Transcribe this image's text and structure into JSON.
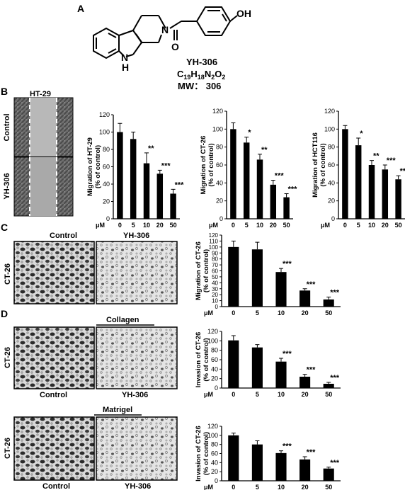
{
  "panel_labels": {
    "a": "A",
    "b": "B",
    "c": "C",
    "d": "D"
  },
  "compound": {
    "name": "YH-306",
    "formula_main": "C",
    "formula_parts": [
      "19",
      "H",
      "18",
      "N",
      "2",
      "O",
      "2"
    ],
    "mw": "MW： 306",
    "oh": "OH",
    "n_ring": "N",
    "n_h": "N",
    "h": "H",
    "o": "O"
  },
  "images": {
    "ht29_title": "HT-29",
    "control": "Control",
    "yh306": "YH-306",
    "ct26": "CT-26",
    "collagen": "Collagen",
    "matrigel": "Matrigel"
  },
  "chart_data": [
    {
      "type": "bar",
      "categories": [
        "0",
        "5",
        "10",
        "20",
        "50"
      ],
      "values": [
        100,
        92,
        64,
        52,
        29
      ],
      "errors": [
        10,
        8,
        12,
        4,
        5
      ],
      "sig": [
        "",
        "",
        "**",
        "***",
        "***"
      ],
      "ylabel": [
        "Migration of HT-29",
        "(% of control)"
      ],
      "xunit": "μM",
      "ylim": [
        0,
        120
      ],
      "yticks": [
        "0",
        "20",
        "40",
        "60",
        "80",
        "100",
        "120"
      ]
    },
    {
      "type": "bar",
      "categories": [
        "0",
        "5",
        "10",
        "20",
        "50"
      ],
      "values": [
        100,
        85,
        66,
        38,
        24
      ],
      "errors": [
        7,
        6,
        6,
        5,
        4
      ],
      "sig": [
        "",
        "*",
        "**",
        "***",
        "***"
      ],
      "ylabel": [
        "Migration of CT-26",
        "(% of control)"
      ],
      "xunit": "μM",
      "ylim": [
        0,
        120
      ],
      "yticks": [
        "0",
        "20",
        "40",
        "60",
        "80",
        "100",
        "120"
      ]
    },
    {
      "type": "bar",
      "categories": [
        "0",
        "5",
        "10",
        "20",
        "50"
      ],
      "values": [
        100,
        82,
        60,
        55,
        44
      ],
      "errors": [
        4,
        8,
        5,
        5,
        4
      ],
      "sig": [
        "",
        "*",
        "**",
        "***",
        "***"
      ],
      "ylabel": [
        "Migration of HCT116",
        "(% of control)"
      ],
      "xunit": "μM",
      "ylim": [
        0,
        120
      ],
      "yticks": [
        "0",
        "20",
        "40",
        "60",
        "80",
        "100",
        "120"
      ]
    },
    {
      "type": "bar",
      "categories": [
        "0",
        "5",
        "10",
        "20",
        "50"
      ],
      "values": [
        100,
        96,
        58,
        27,
        12
      ],
      "errors": [
        10,
        12,
        6,
        3,
        4
      ],
      "sig": [
        "",
        "",
        "***",
        "***",
        "***"
      ],
      "ylabel": [
        "Migration of CT-26",
        "(% of control)"
      ],
      "xunit": "μM",
      "ylim": [
        0,
        120
      ],
      "yticks": [
        "0",
        "10",
        "20",
        "30",
        "40",
        "50",
        "60",
        "70",
        "80",
        "90",
        "100",
        "110",
        "120"
      ]
    },
    {
      "type": "bar",
      "categories": [
        "0",
        "5",
        "10",
        "20",
        "50"
      ],
      "values": [
        101,
        86,
        56,
        24,
        9
      ],
      "errors": [
        10,
        6,
        7,
        5,
        3
      ],
      "sig": [
        "",
        "",
        "***",
        "***",
        "***"
      ],
      "ylabel": [
        "Invasion of CT-26",
        "(% of control)"
      ],
      "xunit": "μM",
      "ylim": [
        0,
        120
      ],
      "yticks": [
        "0",
        "20",
        "40",
        "60",
        "80",
        "100",
        "120"
      ]
    },
    {
      "type": "bar",
      "categories": [
        "0",
        "5",
        "10",
        "20",
        "50"
      ],
      "values": [
        100,
        80,
        61,
        47,
        27
      ],
      "errors": [
        5,
        8,
        5,
        6,
        3
      ],
      "sig": [
        "",
        "",
        "***",
        "***",
        "***"
      ],
      "ylabel": [
        "Invasion of CT-26",
        "(% of control)"
      ],
      "xunit": "μM",
      "ylim": [
        0,
        120
      ],
      "yticks": [
        "0",
        "20",
        "40",
        "60",
        "80",
        "100",
        "120"
      ]
    }
  ]
}
